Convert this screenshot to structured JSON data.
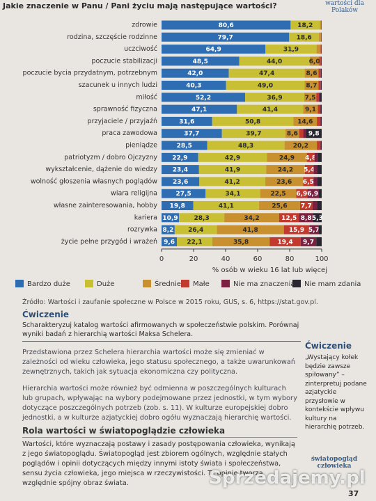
{
  "chart_data": {
    "type": "stacked-bar-horizontal",
    "title": "Jakie znaczenie w Panu / Pani życiu mają następujące wartości?",
    "side_title": "wartości dla Polaków",
    "categories": [
      "zdrowie",
      "rodzina, szczęście rodzinne",
      "uczciwość",
      "poczucie stabilizacji",
      "poczucie bycia przydatnym, potrzebnym",
      "szacunek u innych ludzi",
      "miłość",
      "sprawność fizyczna",
      "przyjaciele / przyjaźń",
      "praca zawodowa",
      "pieniądze",
      "patriotyzm / dobro Ojczyzny",
      "wykształcenie, dążenie do wiedzy",
      "wolność głoszenia własnych poglądów",
      "wiara religijna",
      "własne zainteresowania, hobby",
      "kariera",
      "rozrywka",
      "życie pełne przygód i wrażeń"
    ],
    "series": [
      {
        "name": "Bardzo duże",
        "color": "#2f6db3",
        "values": [
          80.6,
          79.7,
          64.9,
          48.5,
          42.0,
          40.3,
          52.2,
          47.1,
          31.6,
          37.7,
          28.5,
          22.9,
          23.4,
          23.6,
          27.5,
          19.8,
          10.9,
          8.2,
          9.6
        ],
        "value_labels": [
          "80,6",
          "79,7",
          "64,9",
          "48,5",
          "42,0",
          "40,3",
          "52,2",
          "47,1",
          "31,6",
          "37,7",
          "28,5",
          "22,9",
          "23,4",
          "23,6",
          "27,5",
          "19,8",
          "10,9",
          "8,2",
          "9,6"
        ]
      },
      {
        "name": "Duże",
        "color": "#c8bf35",
        "values": [
          18.2,
          18.6,
          31.9,
          44.0,
          47.4,
          49.0,
          36.9,
          41.4,
          50.8,
          39.7,
          48.3,
          42.9,
          41.9,
          41.2,
          34.1,
          41.1,
          28.3,
          26.4,
          22.1
        ],
        "value_labels": [
          "18,2",
          "18,6",
          "31,9",
          "44,0",
          "47,4",
          "49,0",
          "36,9",
          "41,4",
          "50,8",
          "39,7",
          "48,3",
          "42,9",
          "41,9",
          "41,2",
          "34,1",
          "41,1",
          "28,3",
          "26,4",
          "22,1"
        ]
      },
      {
        "name": "Średnie",
        "color": "#c8902f",
        "values": [
          0.8,
          1.2,
          2.5,
          6.0,
          8.6,
          8.7,
          7.5,
          9.1,
          14.6,
          8.6,
          20.2,
          24.9,
          24.2,
          23.6,
          22.5,
          25.6,
          34.2,
          41.8,
          35.8
        ],
        "value_labels": [
          null,
          null,
          null,
          "6,0",
          "8,6",
          "8,7",
          "7,5",
          "9,1",
          "14,6",
          "8,6",
          "20,2",
          "24,9",
          "24,2",
          "23,6",
          "22,5",
          "25,6",
          "34,2",
          "41,8",
          "35,8"
        ]
      },
      {
        "name": "Małe",
        "color": "#c23a2e",
        "values": [
          0.2,
          0.3,
          0.4,
          1.0,
          1.2,
          1.2,
          1.5,
          1.2,
          2.0,
          2.5,
          2.0,
          4.8,
          5.4,
          6.5,
          6.9,
          7.7,
          12.5,
          15.9,
          19.4
        ],
        "value_labels": [
          null,
          null,
          null,
          null,
          null,
          null,
          null,
          null,
          null,
          null,
          null,
          "4,8",
          "5,4",
          "6,5",
          "6,9",
          "7,7",
          "12,5",
          "15,9",
          "19,4"
        ]
      },
      {
        "name": "Nie ma znaczenia",
        "color": "#7b2040",
        "values": [
          0.1,
          0.1,
          0.1,
          0.2,
          0.3,
          0.3,
          1.0,
          0.6,
          0.5,
          1.7,
          0.5,
          2.0,
          2.5,
          2.5,
          6.9,
          3.0,
          8.8,
          5.7,
          9.7
        ],
        "value_labels": [
          null,
          null,
          null,
          null,
          null,
          null,
          null,
          null,
          null,
          null,
          null,
          null,
          null,
          null,
          "6,9",
          null,
          "8,8",
          "5,7",
          "9,7"
        ]
      },
      {
        "name": "Nie mam zdania",
        "color": "#2a2631",
        "values": [
          0.1,
          0.1,
          0.2,
          0.3,
          0.5,
          0.5,
          0.9,
          0.6,
          0.5,
          9.8,
          0.5,
          2.5,
          2.6,
          2.6,
          2.1,
          2.8,
          5.3,
          2.0,
          3.4
        ],
        "value_labels": [
          null,
          null,
          null,
          null,
          null,
          null,
          null,
          null,
          null,
          "9,8",
          null,
          null,
          null,
          null,
          null,
          null,
          "5,3",
          null,
          null
        ]
      }
    ],
    "xlim": [
      0,
      100
    ],
    "xticks": [
      0,
      20,
      40,
      60,
      80,
      100
    ],
    "grid": false,
    "xlabel": "% osób w wieku 16 lat lub więcej",
    "source": "Źródło: Wartości i zaufanie społeczne w Polsce w 2015 roku, GUS, s. 6, https://stat.gov.pl."
  },
  "exercise": {
    "title": "Ćwiczenie",
    "text": "Scharakteryzuj katalog wartości afirmowanych w społeczeństwie polskim. Porównaj wyniki badań z hierarchią wartości Maksa Schelera."
  },
  "paragraphs": [
    "Przedstawiona przez Schelera hierarchia wartości może się zmieniać w zależności od wieku człowieka, jego statusu społecznego, a także uwarunkowań zewnętrznych, takich jak sytuacja ekonomiczna czy polityczna.",
    "Hierarchia wartości może również być odmienna w poszczególnych kulturach lub grupach, wpływając na wybory podejmowane przez jednostki, w tym wybory dotyczące poszczególnych potrzeb (zob. s. 11). W kulturze europejskiej dobro jednostki, a w kulturze azjatyckiej dobro ogółu wyznaczają hierarchię wartości."
  ],
  "side_exercise": {
    "title": "Ćwiczenie",
    "text": "„Wystający kołek będzie zawsze spiłowany” – zinterpretuj podane azjatyckie przysłowie w kontekście wpływu kultury na hierarchię potrzeb."
  },
  "section": {
    "title": "Rola wartości w światopoglądzie człowieka",
    "text": "Wartości, które wyznaczają postawy i zasady postępowania człowieka, wynikają z jego światopoglądu. Światopogląd jest zbiorem ogólnych, względnie stałych poglądów i opinii dotyczących między innymi istoty świata i społeczeństwa, sensu życia człowieka, jego miejsca w rzeczywistości. Te opinie tworzą względnie spójny obraz świata.",
    "tag": "światopogląd człowieka"
  },
  "watermark": "Sprzedajemy.pl",
  "page_number": "37"
}
